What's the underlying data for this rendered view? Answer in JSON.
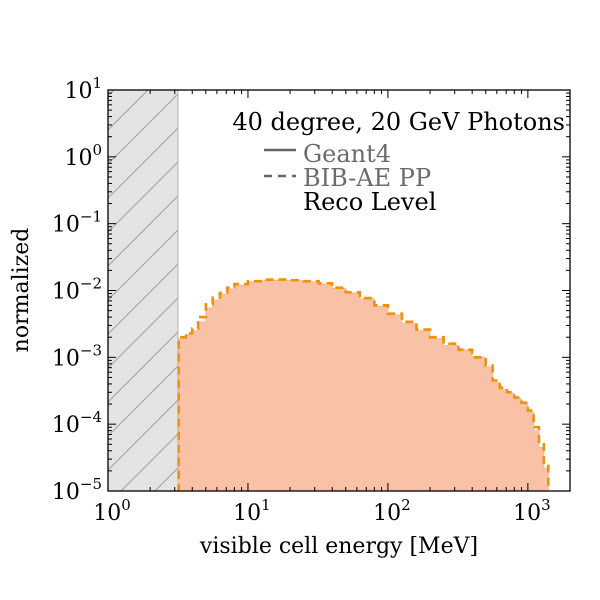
{
  "chart_data": {
    "type": "area",
    "title": "",
    "xlabel": "visible cell energy [MeV]",
    "ylabel": "normalized",
    "xscale": "log",
    "yscale": "log",
    "xlim": [
      1,
      2000
    ],
    "ylim": [
      1e-05,
      10
    ],
    "x_ticks": [
      {
        "base": "10",
        "exp": "0",
        "value": 1
      },
      {
        "base": "10",
        "exp": "1",
        "value": 10
      },
      {
        "base": "10",
        "exp": "2",
        "value": 100
      },
      {
        "base": "10",
        "exp": "3",
        "value": 1000
      }
    ],
    "y_ticks": [
      {
        "base": "10",
        "exp": "1",
        "value": 10
      },
      {
        "base": "10",
        "exp": "0",
        "value": 1
      },
      {
        "base": "10",
        "exp": "−1",
        "value": 0.1
      },
      {
        "base": "10",
        "exp": "−2",
        "value": 0.01
      },
      {
        "base": "10",
        "exp": "−3",
        "value": 0.001
      },
      {
        "base": "10",
        "exp": "−4",
        "value": 0.0001
      },
      {
        "base": "10",
        "exp": "−5",
        "value": 1e-05
      }
    ],
    "excluded_region": {
      "x": [
        1,
        3.16
      ],
      "style": "hatched",
      "color": "#e4e4e4"
    },
    "annotation": {
      "title": "40 degree, 20 GeV Photons",
      "level": "Reco Level"
    },
    "legend_position": "top-right",
    "series": [
      {
        "name": "Geant4",
        "style": "filled-histogram",
        "color": "#f9c2a6",
        "points": [
          [
            3.16,
            2e-05
          ],
          [
            3.2,
            0.0019
          ],
          [
            3.6,
            0.0022
          ],
          [
            4.0,
            0.0025
          ],
          [
            4.4,
            0.0034
          ],
          [
            5.0,
            0.0055
          ],
          [
            5.6,
            0.0072
          ],
          [
            6.3,
            0.0088
          ],
          [
            7.1,
            0.0105
          ],
          [
            8.0,
            0.012
          ],
          [
            10,
            0.0135
          ],
          [
            13,
            0.0142
          ],
          [
            16,
            0.0143
          ],
          [
            20,
            0.014
          ],
          [
            25,
            0.0135
          ],
          [
            32,
            0.0125
          ],
          [
            40,
            0.0108
          ],
          [
            50,
            0.0092
          ],
          [
            63,
            0.0075
          ],
          [
            80,
            0.0058
          ],
          [
            100,
            0.0043
          ],
          [
            126,
            0.0032
          ],
          [
            160,
            0.0025
          ],
          [
            200,
            0.0019
          ],
          [
            250,
            0.0015
          ],
          [
            320,
            0.0013
          ],
          [
            400,
            0.001
          ],
          [
            500,
            0.00072
          ],
          [
            560,
            0.00042
          ],
          [
            630,
            0.00033
          ],
          [
            710,
            0.00029
          ],
          [
            800,
            0.00024
          ],
          [
            900,
            0.0002
          ],
          [
            1000,
            0.00015
          ],
          [
            1100,
            8e-05
          ],
          [
            1200,
            4.5e-05
          ],
          [
            1300,
            2.2e-05
          ],
          [
            1400,
            1e-05
          ]
        ]
      },
      {
        "name": "BIB-AE PP",
        "style": "dashed-step",
        "color": "#f0900c",
        "points": [
          [
            3.16,
            1e-05
          ],
          [
            3.2,
            0.002
          ],
          [
            3.6,
            0.0023
          ],
          [
            4.0,
            0.0027
          ],
          [
            4.4,
            0.004
          ],
          [
            5.0,
            0.0062
          ],
          [
            5.6,
            0.0078
          ],
          [
            6.3,
            0.0092
          ],
          [
            7.1,
            0.011
          ],
          [
            8.0,
            0.0125
          ],
          [
            10,
            0.0138
          ],
          [
            13,
            0.0145
          ],
          [
            16,
            0.0146
          ],
          [
            20,
            0.0143
          ],
          [
            25,
            0.0138
          ],
          [
            32,
            0.0128
          ],
          [
            40,
            0.011
          ],
          [
            50,
            0.0094
          ],
          [
            63,
            0.0077
          ],
          [
            80,
            0.006
          ],
          [
            100,
            0.0045
          ],
          [
            126,
            0.0034
          ],
          [
            160,
            0.0026
          ],
          [
            200,
            0.002
          ],
          [
            250,
            0.0016
          ],
          [
            320,
            0.0013
          ],
          [
            400,
            0.001
          ],
          [
            500,
            0.00075
          ],
          [
            560,
            0.00045
          ],
          [
            630,
            0.00035
          ],
          [
            710,
            0.0003
          ],
          [
            800,
            0.00025
          ],
          [
            900,
            0.00021
          ],
          [
            1000,
            0.00016
          ],
          [
            1100,
            9e-05
          ],
          [
            1200,
            5e-05
          ],
          [
            1300,
            2.5e-05
          ],
          [
            1400,
            1e-05
          ]
        ]
      }
    ]
  }
}
